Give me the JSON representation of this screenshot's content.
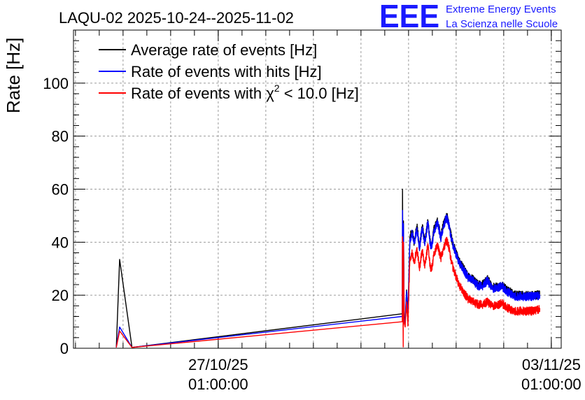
{
  "colors": {
    "average": "#000000",
    "hits": "#0000ff",
    "chi2": "#ff0000",
    "logo": "#1a1aff",
    "grid": "#9a9a9a"
  },
  "logo": {
    "mark": "EEE",
    "line1": "Extreme Energy Events",
    "line2": "La Scienza nelle Scuole"
  },
  "chart_data": {
    "type": "line",
    "title": "LAQU-02 2025-10-24--2025-11-02",
    "ylabel": "Rate [Hz]",
    "xlabel": "",
    "ylim": [
      0,
      120
    ],
    "xlim_days": [
      0.0,
      10.25
    ],
    "x_unit": "days since 2025-10-24 00:00",
    "grid": true,
    "yticks": [
      0,
      20,
      40,
      60,
      80,
      100
    ],
    "xticks": [
      {
        "x": 3.042,
        "line1": "27/10/25",
        "line2": "01:00:00"
      },
      {
        "x": 10.042,
        "line1": "03/11/25",
        "line2": "01:00:00"
      }
    ],
    "legend": {
      "position": "top-left",
      "entries": [
        {
          "series": "average",
          "label": "Average rate of events [Hz]"
        },
        {
          "series": "hits",
          "label": "Rate of events with hits [Hz]"
        },
        {
          "series": "chi2",
          "label_prefix": "Rate of events with ",
          "symbol": "χ",
          "superscript": "2",
          "label_suffix": " < 10.0 [Hz]"
        }
      ]
    },
    "series": [
      {
        "name": "average",
        "label": "Average rate of events [Hz]",
        "x": [
          0.9,
          0.97,
          1.23,
          6.91,
          6.915,
          6.93,
          6.935,
          6.95,
          6.97,
          7.0,
          7.03,
          7.07,
          7.12,
          7.16,
          7.22,
          7.27,
          7.33,
          7.38,
          7.45,
          7.48,
          7.52,
          7.58,
          7.65,
          7.72,
          7.78,
          7.85,
          7.9,
          7.95,
          8.0,
          8.1,
          8.2,
          8.3,
          8.4,
          8.5,
          8.6,
          8.7,
          8.8,
          8.9,
          9.0,
          9.1,
          9.2,
          9.3,
          9.4,
          9.5,
          9.6,
          9.7,
          9.8
        ],
        "y": [
          0.3,
          33.5,
          0.3,
          13.0,
          60.0,
          10.0,
          48.0,
          12.0,
          10.0,
          22.0,
          12.0,
          42.0,
          44.0,
          40.0,
          46.0,
          38.0,
          46.0,
          40.0,
          48.0,
          42.0,
          38.0,
          45.0,
          48.0,
          42.0,
          47.0,
          50.0,
          46.0,
          41.0,
          38.0,
          33.0,
          30.0,
          27.0,
          26.0,
          24.0,
          24.0,
          26.0,
          23.0,
          23.0,
          24.0,
          22.0,
          21.0,
          20.0,
          20.0,
          20.0,
          20.0,
          20.0,
          20.5
        ]
      },
      {
        "name": "hits",
        "label": "Rate of events with hits [Hz]",
        "x": [
          0.9,
          0.97,
          1.23,
          6.91,
          6.915,
          6.93,
          6.935,
          6.95,
          6.97,
          7.0,
          7.03,
          7.07,
          7.12,
          7.16,
          7.22,
          7.27,
          7.33,
          7.38,
          7.45,
          7.48,
          7.52,
          7.58,
          7.65,
          7.72,
          7.78,
          7.85,
          7.9,
          7.95,
          8.0,
          8.1,
          8.2,
          8.3,
          8.4,
          8.5,
          8.6,
          8.7,
          8.8,
          8.9,
          9.0,
          9.1,
          9.2,
          9.3,
          9.4,
          9.5,
          9.6,
          9.7,
          9.8
        ],
        "y": [
          0.3,
          8.0,
          0.3,
          12.0,
          52.0,
          10.0,
          47.0,
          11.5,
          9.5,
          21.5,
          11.5,
          41.0,
          43.5,
          39.5,
          45.5,
          37.5,
          45.5,
          39.5,
          47.5,
          41.5,
          37.5,
          44.5,
          47.5,
          41.5,
          46.5,
          49.5,
          45.5,
          40.5,
          37.5,
          32.5,
          29.5,
          26.5,
          25.5,
          23.5,
          23.5,
          25.5,
          22.5,
          22.5,
          23.5,
          21.5,
          20.5,
          19.5,
          19.5,
          19.5,
          19.5,
          19.5,
          20.0
        ]
      },
      {
        "name": "chi2",
        "label": "Rate of events with chi2 < 10.0 [Hz]",
        "x": [
          0.9,
          0.97,
          1.23,
          6.91,
          6.915,
          6.93,
          6.935,
          6.95,
          6.97,
          7.0,
          7.03,
          7.07,
          7.12,
          7.16,
          7.22,
          7.27,
          7.33,
          7.38,
          7.45,
          7.48,
          7.52,
          7.58,
          7.65,
          7.72,
          7.78,
          7.85,
          7.9,
          7.95,
          8.0,
          8.1,
          8.2,
          8.3,
          8.4,
          8.5,
          8.6,
          8.7,
          8.8,
          8.9,
          9.0,
          9.1,
          9.2,
          9.3,
          9.4,
          9.5,
          9.6,
          9.7,
          9.8
        ],
        "y": [
          0.3,
          6.5,
          0.3,
          10.0,
          42.0,
          0.5,
          40.0,
          9.5,
          8.0,
          17.5,
          9.0,
          34.0,
          36.0,
          32.0,
          38.0,
          30.0,
          37.0,
          31.0,
          39.0,
          33.0,
          29.0,
          36.0,
          39.0,
          34.0,
          38.0,
          41.0,
          37.0,
          32.0,
          29.0,
          24.0,
          21.0,
          18.5,
          17.5,
          16.5,
          16.5,
          17.5,
          16.0,
          16.0,
          17.0,
          15.5,
          14.5,
          14.0,
          14.0,
          14.0,
          14.0,
          14.0,
          15.0
        ]
      }
    ]
  }
}
